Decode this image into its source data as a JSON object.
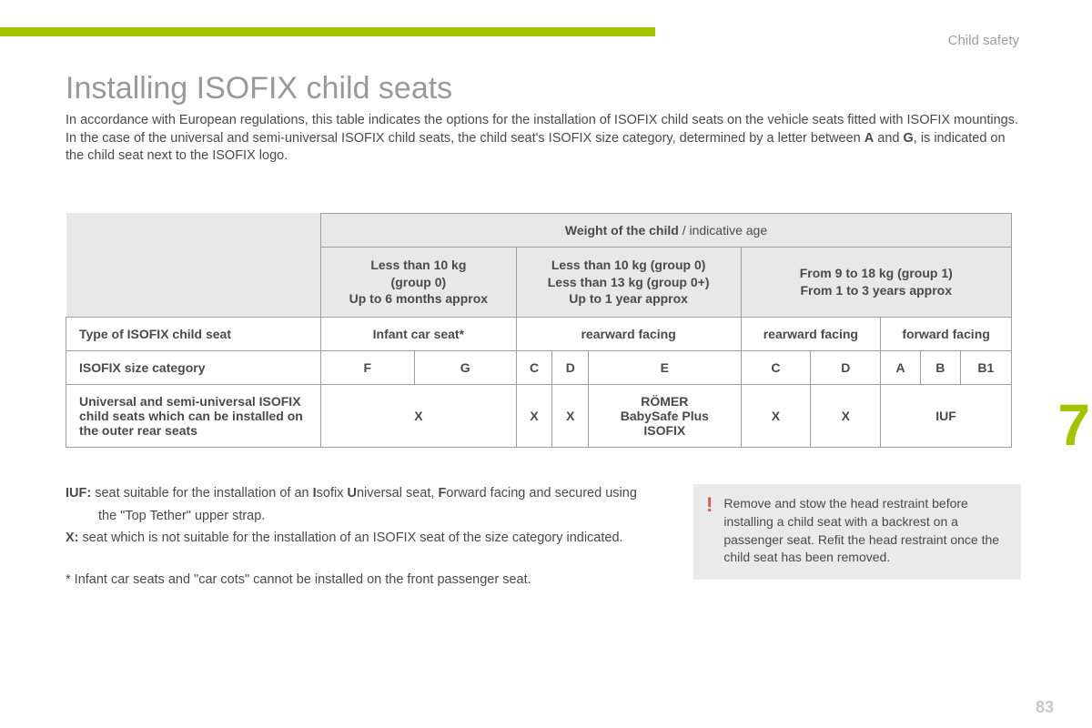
{
  "accent_color": "#a4c400",
  "section_label": "Child safety",
  "chapter_number": "7",
  "page_number": "83",
  "title": "Installing ISOFIX child seats",
  "intro_line1": "In accordance with European regulations, this table indicates the options for the installation of ISOFIX child seats on the vehicle seats fitted with ISOFIX mountings.",
  "intro_line2a": "In the case of the universal and semi-universal ISOFIX child seats, the child seat's ISOFIX size category, determined by a letter between ",
  "intro_line2_bA": "A",
  "intro_line2_mid": " and ",
  "intro_line2_bG": "G",
  "intro_line2b": ", is indicated on the child seat next to the ISOFIX logo.",
  "table": {
    "weight_header_bold": "Weight of the child",
    "weight_header_rest": " / indicative age",
    "col1_b1": "Less than 10 kg",
    "col1_b2": "(group 0)",
    "col1_n": "Up to 6 months approx",
    "col2_b1": "Less than 10 kg (group 0)",
    "col2_b2": "Less than 13 kg (group 0+)",
    "col2_n": "Up to 1 year approx",
    "col3_b": "From 9 to 18 kg (group 1)",
    "col3_n": "From 1 to 3 years approx",
    "row_type_label": "Type of ISOFIX child seat",
    "row_type_c1": "Infant car seat*",
    "row_type_c2": "rearward facing",
    "row_type_c3": "rearward facing",
    "row_type_c4": "forward facing",
    "row_size_label": "ISOFIX size category",
    "sizes": [
      "F",
      "G",
      "C",
      "D",
      "E",
      "C",
      "D",
      "A",
      "B",
      "B1"
    ],
    "row_univ_label": "Universal and semi-universal ISOFIX child seats which can be installed on the outer rear seats",
    "univ": {
      "c1": "X",
      "c2a": "X",
      "c2b": "X",
      "c2c_l1": "RÖMER",
      "c2c_l2": "BabySafe Plus",
      "c2c_l3": "ISOFIX",
      "c3a": "X",
      "c3b": "X",
      "c4": "IUF"
    }
  },
  "legend": {
    "iuf_b": "IUF:",
    "iuf_t1": " seat suitable for the installation of an ",
    "iuf_bI": "I",
    "iuf_t2": "sofix ",
    "iuf_bU": "U",
    "iuf_t3": "niversal seat, ",
    "iuf_bF": "F",
    "iuf_t4": "orward facing and secured using",
    "iuf_line2": "the \"Top Tether\" upper strap.",
    "x_b": "X:",
    "x_t": " seat which is not suitable for the installation of an ISOFIX seat of the size category indicated.",
    "star": "* Infant car seats and \"car cots\" cannot be installed on the front passenger seat."
  },
  "callout": {
    "bang": "!",
    "text": "Remove and stow the head restraint before installing a child seat with a backrest on a passenger seat. Refit the head restraint once the child seat has been removed."
  }
}
